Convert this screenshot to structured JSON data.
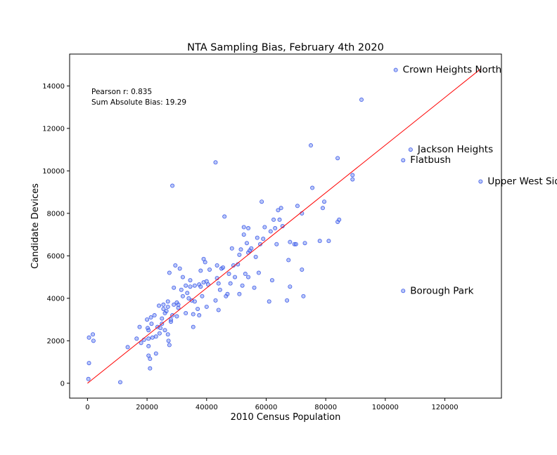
{
  "chart_data": {
    "type": "scatter",
    "title": "NTA Sampling Bias, February 4th 2020",
    "xlabel": "2010 Census Population",
    "ylabel": "Candidate Devices",
    "xlim": [
      -6000,
      139000
    ],
    "ylim": [
      -700,
      15500
    ],
    "xticks": [
      0,
      20000,
      40000,
      60000,
      80000,
      100000,
      120000
    ],
    "yticks": [
      0,
      2000,
      4000,
      6000,
      8000,
      10000,
      12000,
      14000
    ],
    "grid": false,
    "stats": {
      "pearson": "Pearson r: 0.835",
      "bias": "Sum Absolute Bias: 19.29"
    },
    "fit_line": {
      "x": [
        0,
        132000
      ],
      "y": [
        0,
        14800
      ]
    },
    "colors": {
      "points": "#6482f0",
      "point_edge": "#2846e6",
      "fit_line": "#ff0000"
    },
    "annotations": [
      {
        "text": "Crown Heights North",
        "x": 103500,
        "y": 14750
      },
      {
        "text": "Jackson Heights",
        "x": 108500,
        "y": 11000
      },
      {
        "text": "Flatbush",
        "x": 106000,
        "y": 10500
      },
      {
        "text": "Upper West Side",
        "x": 132000,
        "y": 9500
      },
      {
        "text": "Borough Park",
        "x": 106000,
        "y": 4350
      }
    ],
    "points": [
      [
        300,
        200
      ],
      [
        500,
        950
      ],
      [
        500,
        2150
      ],
      [
        1800,
        2300
      ],
      [
        2000,
        2000
      ],
      [
        11000,
        50
      ],
      [
        13500,
        1700
      ],
      [
        16500,
        2100
      ],
      [
        17500,
        2650
      ],
      [
        18000,
        1900
      ],
      [
        19000,
        2050
      ],
      [
        20000,
        3000
      ],
      [
        20200,
        2600
      ],
      [
        20500,
        2500
      ],
      [
        20500,
        2100
      ],
      [
        20500,
        1300
      ],
      [
        20500,
        1750
      ],
      [
        21000,
        1150
      ],
      [
        21000,
        700
      ],
      [
        21300,
        3100
      ],
      [
        21500,
        2800
      ],
      [
        21800,
        2150
      ],
      [
        22500,
        3200
      ],
      [
        23000,
        1400
      ],
      [
        23000,
        2200
      ],
      [
        23500,
        2650
      ],
      [
        24000,
        3650
      ],
      [
        24200,
        2350
      ],
      [
        24500,
        2600
      ],
      [
        25000,
        2800
      ],
      [
        25000,
        3050
      ],
      [
        25500,
        3500
      ],
      [
        25500,
        3700
      ],
      [
        26000,
        3300
      ],
      [
        26000,
        2500
      ],
      [
        26500,
        3400
      ],
      [
        27000,
        3850
      ],
      [
        27000,
        3600
      ],
      [
        27000,
        2300
      ],
      [
        27200,
        2000
      ],
      [
        27500,
        1800
      ],
      [
        27500,
        5200
      ],
      [
        28000,
        2900
      ],
      [
        28000,
        3000
      ],
      [
        28500,
        3200
      ],
      [
        28500,
        9300
      ],
      [
        29000,
        3700
      ],
      [
        29000,
        4500
      ],
      [
        29500,
        5550
      ],
      [
        30000,
        3150
      ],
      [
        30000,
        3800
      ],
      [
        30500,
        3550
      ],
      [
        30500,
        3700
      ],
      [
        31000,
        5400
      ],
      [
        31500,
        4400
      ],
      [
        32000,
        4100
      ],
      [
        32000,
        5000
      ],
      [
        33000,
        3300
      ],
      [
        33000,
        4600
      ],
      [
        33500,
        4250
      ],
      [
        34000,
        4000
      ],
      [
        34500,
        4550
      ],
      [
        34500,
        4850
      ],
      [
        35000,
        3900
      ],
      [
        35500,
        2650
      ],
      [
        35500,
        3250
      ],
      [
        36000,
        3850
      ],
      [
        36000,
        4600
      ],
      [
        37000,
        3500
      ],
      [
        37500,
        4650
      ],
      [
        37500,
        3200
      ],
      [
        38000,
        4550
      ],
      [
        38000,
        5300
      ],
      [
        38500,
        4100
      ],
      [
        39000,
        5850
      ],
      [
        39000,
        4750
      ],
      [
        39500,
        5700
      ],
      [
        40000,
        4800
      ],
      [
        40000,
        3600
      ],
      [
        40500,
        4650
      ],
      [
        41000,
        5350
      ],
      [
        43000,
        3900
      ],
      [
        43000,
        10400
      ],
      [
        43500,
        4950
      ],
      [
        43500,
        5550
      ],
      [
        44000,
        4700
      ],
      [
        44000,
        3450
      ],
      [
        44500,
        4400
      ],
      [
        45000,
        5400
      ],
      [
        45500,
        5450
      ],
      [
        46000,
        7850
      ],
      [
        46500,
        4100
      ],
      [
        47000,
        4200
      ],
      [
        47500,
        5150
      ],
      [
        48000,
        4700
      ],
      [
        48500,
        6350
      ],
      [
        49000,
        5550
      ],
      [
        49500,
        5000
      ],
      [
        50500,
        5600
      ],
      [
        51000,
        6050
      ],
      [
        51000,
        4200
      ],
      [
        51500,
        6300
      ],
      [
        52000,
        4600
      ],
      [
        52500,
        7350
      ],
      [
        52500,
        7000
      ],
      [
        53000,
        5150
      ],
      [
        53500,
        6600
      ],
      [
        54000,
        5000
      ],
      [
        54000,
        7300
      ],
      [
        54000,
        6150
      ],
      [
        54500,
        6250
      ],
      [
        55000,
        6350
      ],
      [
        56000,
        4500
      ],
      [
        56500,
        5950
      ],
      [
        57000,
        6850
      ],
      [
        57500,
        5200
      ],
      [
        58000,
        6550
      ],
      [
        58500,
        8550
      ],
      [
        59000,
        6800
      ],
      [
        59500,
        7350
      ],
      [
        61000,
        3850
      ],
      [
        61500,
        7150
      ],
      [
        62000,
        4850
      ],
      [
        62500,
        7700
      ],
      [
        63000,
        7300
      ],
      [
        63500,
        6550
      ],
      [
        64000,
        8150
      ],
      [
        64500,
        7700
      ],
      [
        65000,
        8250
      ],
      [
        65500,
        7400
      ],
      [
        67000,
        3900
      ],
      [
        67500,
        5800
      ],
      [
        68000,
        6650
      ],
      [
        68000,
        4550
      ],
      [
        69500,
        6550
      ],
      [
        70000,
        6550
      ],
      [
        70500,
        8350
      ],
      [
        72000,
        8000
      ],
      [
        72000,
        5350
      ],
      [
        72500,
        4100
      ],
      [
        73000,
        6600
      ],
      [
        75000,
        11200
      ],
      [
        75500,
        9200
      ],
      [
        78000,
        6700
      ],
      [
        79000,
        8250
      ],
      [
        79500,
        8550
      ],
      [
        81000,
        6700
      ],
      [
        84000,
        7600
      ],
      [
        84000,
        10600
      ],
      [
        84500,
        7700
      ],
      [
        89000,
        9800
      ],
      [
        89000,
        9600
      ],
      [
        92000,
        13350
      ],
      [
        103500,
        14750
      ],
      [
        106000,
        4350
      ],
      [
        106000,
        10500
      ],
      [
        108500,
        11000
      ],
      [
        132000,
        9500
      ]
    ]
  }
}
